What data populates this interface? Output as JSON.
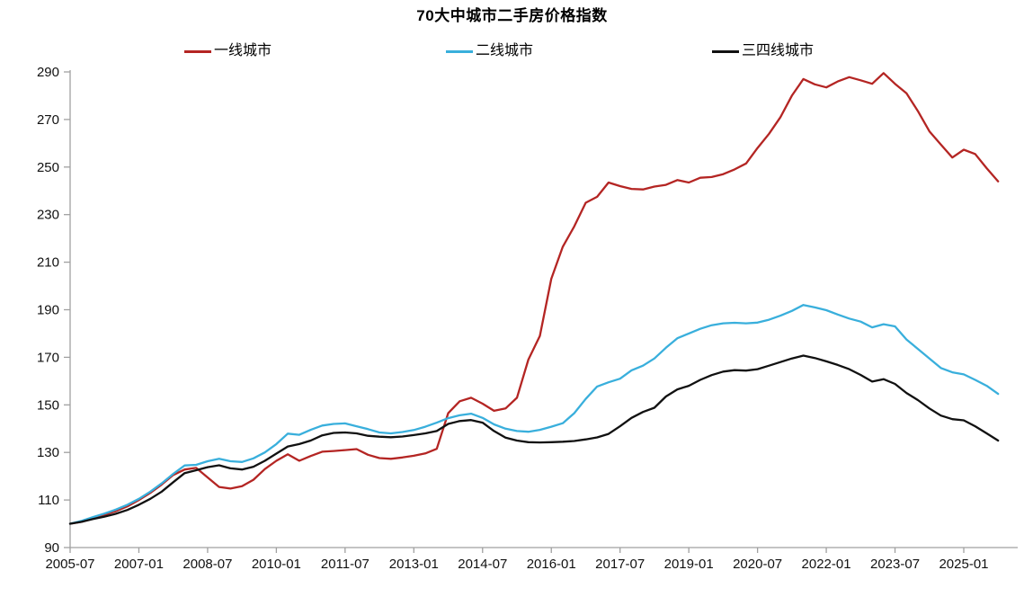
{
  "chart_data": {
    "type": "line",
    "title": "70大中城市二手房价格指数",
    "xlabel": "",
    "ylabel": "",
    "grid": false,
    "legend_position": "top",
    "ylim": [
      90,
      290
    ],
    "yticks": [
      90,
      110,
      130,
      150,
      170,
      190,
      210,
      230,
      250,
      270,
      290
    ],
    "xtick_labels": [
      "2005-07",
      "2007-01",
      "2008-07",
      "2010-01",
      "2011-07",
      "2013-01",
      "2014-07",
      "2016-01",
      "2017-07",
      "2019-01",
      "2020-07",
      "2022-01",
      "2023-07",
      "2025-01"
    ],
    "xtick_months": [
      0,
      18,
      36,
      54,
      72,
      90,
      108,
      126,
      144,
      162,
      180,
      198,
      216,
      234
    ],
    "x_unit": "months since 2005-07, quarterly samples",
    "x_months": [
      0,
      3,
      6,
      9,
      12,
      15,
      18,
      21,
      24,
      27,
      30,
      33,
      36,
      39,
      42,
      45,
      48,
      51,
      54,
      57,
      60,
      63,
      66,
      69,
      72,
      75,
      78,
      81,
      84,
      87,
      90,
      93,
      96,
      99,
      102,
      105,
      108,
      111,
      114,
      117,
      120,
      123,
      126,
      129,
      132,
      135,
      138,
      141,
      144,
      147,
      150,
      153,
      156,
      159,
      162,
      165,
      168,
      171,
      174,
      177,
      180,
      183,
      186,
      189,
      192,
      195,
      198,
      201,
      204,
      207,
      210,
      213,
      216,
      219,
      222,
      225,
      228,
      231,
      234,
      237,
      240,
      243
    ],
    "axis_color": "#a0a0a0",
    "label_color": "#111111",
    "series": [
      {
        "name": "一线城市",
        "color": "#b42523",
        "values": [
          100,
          100.8,
          102.3,
          103.8,
          105.3,
          107.3,
          110,
          113,
          116.5,
          120.5,
          122.8,
          123.5,
          119.5,
          115.5,
          114.8,
          115.8,
          118.5,
          123,
          126.5,
          129.2,
          126.5,
          128.5,
          130.3,
          130.6,
          131,
          131.4,
          129,
          127.6,
          127.3,
          127.9,
          128.6,
          129.6,
          131.5,
          146.5,
          151.5,
          153,
          150.5,
          147.5,
          148.5,
          153,
          169,
          179,
          203,
          216.5,
          225,
          235,
          237.5,
          243.5,
          242,
          240.8,
          240.6,
          241.8,
          242.5,
          244.5,
          243.5,
          245.5,
          245.8,
          247,
          249,
          251.5,
          258,
          264,
          271,
          280,
          287,
          284.8,
          283.5,
          286,
          287.8,
          286.5,
          285,
          289.5,
          285,
          281,
          273.5,
          265,
          259.5,
          254,
          257.3,
          255.5,
          249.5,
          244
        ]
      },
      {
        "name": "二线城市",
        "color": "#39afdc",
        "values": [
          100,
          101.2,
          102.8,
          104.3,
          106,
          108,
          110.5,
          113.5,
          117,
          121,
          124.5,
          124.8,
          126.3,
          127.3,
          126.3,
          126,
          127.5,
          130,
          133.5,
          137.9,
          137.4,
          139.5,
          141.3,
          142,
          142.2,
          141,
          139.8,
          138.4,
          138,
          138.6,
          139.4,
          140.8,
          142.5,
          144.4,
          145.6,
          146.3,
          144.5,
          141.8,
          140,
          139,
          138.7,
          139.5,
          140.8,
          142.3,
          146.5,
          152.5,
          157.7,
          159.5,
          161,
          164.5,
          166.5,
          169.5,
          174,
          178,
          180,
          182,
          183.5,
          184.3,
          184.5,
          184.3,
          184.6,
          185.8,
          187.5,
          189.5,
          192,
          191,
          189.8,
          188,
          186.3,
          185,
          182.6,
          183.9,
          183,
          177.5,
          173.5,
          169.5,
          165.5,
          163.7,
          162.8,
          160.5,
          158,
          154.6
        ]
      },
      {
        "name": "三四线城市",
        "color": "#111111",
        "values": [
          100,
          100.8,
          102,
          103,
          104.2,
          105.8,
          108,
          110.5,
          113.5,
          117.5,
          121.3,
          122.5,
          123.8,
          124.6,
          123.3,
          122.8,
          124,
          126.5,
          129.5,
          132.5,
          133.5,
          135,
          137.2,
          138.2,
          138.4,
          138,
          137,
          136.6,
          136.4,
          136.7,
          137.3,
          138,
          139,
          142,
          143.2,
          143.6,
          142.5,
          139,
          136.2,
          135,
          134.3,
          134.2,
          134.3,
          134.5,
          134.8,
          135.5,
          136.3,
          137.8,
          141,
          144.5,
          147,
          148.8,
          153.5,
          156.5,
          158,
          160.5,
          162.5,
          164,
          164.6,
          164.4,
          165,
          166.5,
          168,
          169.5,
          170.7,
          169.7,
          168.3,
          166.8,
          165,
          162.6,
          159.8,
          160.8,
          158.8,
          155,
          152,
          148.5,
          145.5,
          144,
          143.5,
          141,
          138,
          135
        ]
      }
    ]
  }
}
